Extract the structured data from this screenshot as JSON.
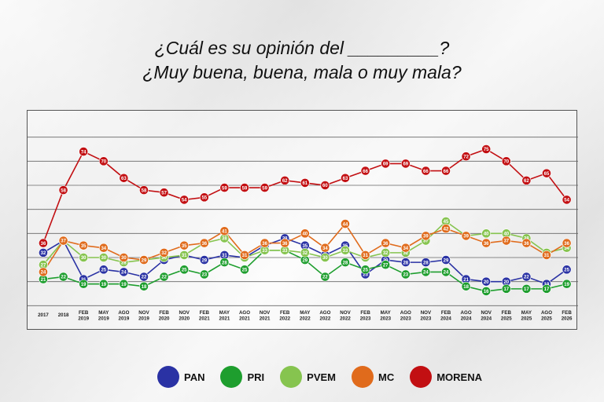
{
  "title_line1": "¿Cuál es su opinión del _________?",
  "title_line2": "¿Muy buena, buena, mala o muy mala?",
  "chart_data": {
    "type": "line",
    "x": [
      "2017",
      "2018",
      "FEB\n2019",
      "MAY\n2019",
      "AGO\n2019",
      "NOV\n2019",
      "FEB\n2020",
      "NOV\n2020",
      "FEB\n2021",
      "MAY\n2021",
      "AGO\n2021",
      "NOV\n2021",
      "FEB\n2022",
      "MAY\n2022",
      "AGO\n2022",
      "NOV\n2022",
      "FEB\n2023",
      "MAY\n2023",
      "AGO\n2023",
      "NOV\n2023",
      "FEB\n2024",
      "AGO\n2024",
      "NOV\n2024",
      "FEB\n2025",
      "MAY\n2025",
      "AGO\n2025",
      "FEB\n2026"
    ],
    "ylim": [
      0,
      90
    ],
    "grid": true,
    "legend_placement": "bottom",
    "series": [
      {
        "name": "PAN",
        "color": "#2a32a4",
        "values": [
          32,
          37,
          21,
          25,
          24,
          22,
          29,
          31,
          29,
          31,
          30,
          35,
          38,
          35,
          31,
          35,
          23,
          29,
          28,
          28,
          29,
          21,
          20,
          20,
          22,
          19,
          25
        ]
      },
      {
        "name": "PRI",
        "color": "#1e9e2e",
        "values": [
          21,
          22,
          19,
          19,
          19,
          18,
          22,
          25,
          23,
          28,
          25,
          33,
          33,
          29,
          22,
          28,
          25,
          27,
          23,
          24,
          24,
          18,
          16,
          17,
          17,
          17,
          19
        ]
      },
      {
        "name": "PVEM",
        "color": "#86c44f",
        "values": [
          27,
          37,
          30,
          30,
          28,
          29,
          30,
          31,
          36,
          38,
          30,
          33,
          33,
          32,
          30,
          33,
          30,
          32,
          32,
          37,
          45,
          39,
          40,
          40,
          38,
          32,
          34
        ]
      },
      {
        "name": "MC",
        "color": "#e06b1c",
        "values": [
          24,
          37,
          35,
          34,
          30,
          29,
          32,
          35,
          36,
          41,
          31,
          36,
          36,
          40,
          34,
          44,
          31,
          36,
          34,
          39,
          42,
          39,
          36,
          37,
          36,
          31,
          36
        ]
      },
      {
        "name": "MORENA",
        "color": "#c20f12",
        "values": [
          36,
          58,
          74,
          70,
          63,
          58,
          57,
          54,
          55,
          59,
          59,
          59,
          62,
          61,
          60,
          63,
          66,
          69,
          69,
          66,
          66,
          72,
          75,
          70,
          62,
          65,
          54
        ]
      }
    ]
  }
}
